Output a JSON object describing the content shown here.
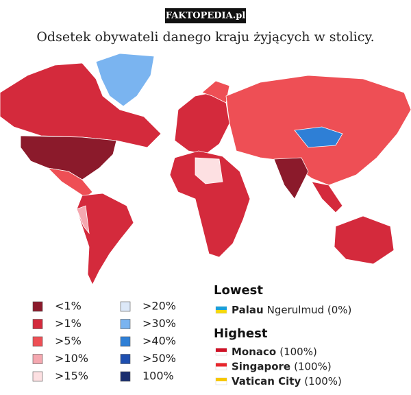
{
  "watermark": "FAKTOPEDIA.pl",
  "title": "Odsetek obywateli danego kraju żyjących w stolicy.",
  "legend": [
    {
      "label": "<1%",
      "color": "#8b1a2b"
    },
    {
      "label": ">1%",
      "color": "#d42a3c"
    },
    {
      "label": ">5%",
      "color": "#ee4f55"
    },
    {
      "label": ">10%",
      "color": "#f5a8b0"
    },
    {
      "label": ">15%",
      "color": "#fde0e2"
    },
    {
      "label": ">20%",
      "color": "#dce8f8"
    },
    {
      "label": ">30%",
      "color": "#7ab4f0"
    },
    {
      "label": ">40%",
      "color": "#2e7fd6"
    },
    {
      "label": ">50%",
      "color": "#1e4fb0"
    },
    {
      "label": "100%",
      "color": "#1a2e6e"
    }
  ],
  "lowest": {
    "heading": "Lowest",
    "entries": [
      {
        "country": "Palau",
        "detail": "Ngerulmud (0%)"
      }
    ]
  },
  "highest": {
    "heading": "Highest",
    "entries": [
      {
        "country": "Monaco",
        "detail": "(100%)"
      },
      {
        "country": "Singapore",
        "detail": "(100%)"
      },
      {
        "country": "Vatican City",
        "detail": "(100%)"
      }
    ]
  }
}
